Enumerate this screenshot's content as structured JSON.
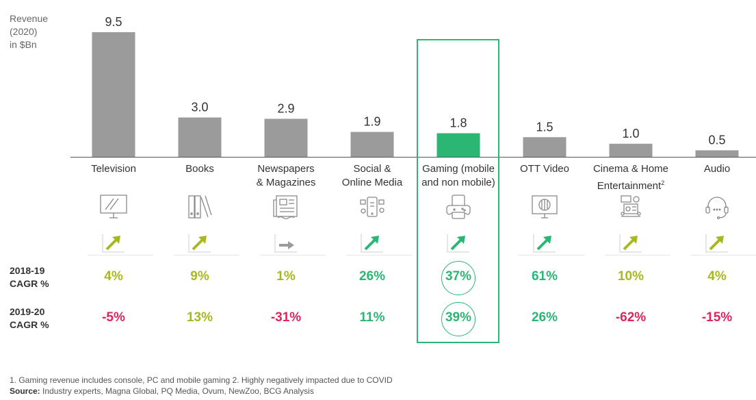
{
  "chart_data": {
    "type": "bar",
    "ylabel": "Revenue (2020) in $Bn",
    "categories": [
      "Television",
      "Books",
      "Newspapers & Magazines",
      "Social & Online Media",
      "Gaming (mobile and non mobile)",
      "OTT Video",
      "Cinema & Home Entertainment",
      "Audio"
    ],
    "values": [
      9.5,
      3.0,
      2.9,
      1.9,
      1.8,
      1.5,
      1.0,
      0.5
    ],
    "value_labels": [
      "9.5",
      "3.0",
      "2.9",
      "1.9",
      "1.8",
      "1.5",
      "1.0",
      "0.5"
    ],
    "highlighted_index": 4,
    "bar_color": "#9b9b9b",
    "highlight_color": "#2bb673",
    "series": [
      {
        "name": "2018-19 CAGR %",
        "values": [
          4,
          9,
          1,
          26,
          37,
          61,
          10,
          4
        ]
      },
      {
        "name": "2019-20 CAGR %",
        "values": [
          -5,
          13,
          -31,
          11,
          39,
          26,
          -62,
          -15
        ]
      }
    ]
  },
  "labels": {
    "ylabel_lines": [
      "Revenue",
      "(2020)",
      "in $Bn"
    ],
    "categories": [
      {
        "line1": "Television",
        "line2": "",
        "sup": ""
      },
      {
        "line1": "Books",
        "line2": "",
        "sup": ""
      },
      {
        "line1": "Newspapers",
        "line2": "& Magazines",
        "sup": ""
      },
      {
        "line1": "Social &",
        "line2": "Online Media",
        "sup": ""
      },
      {
        "line1": "Gaming (mobile",
        "line2": "and non mobile)",
        "sup": ""
      },
      {
        "line1": "OTT Video",
        "line2": "",
        "sup": ""
      },
      {
        "line1": "Cinema & Home",
        "line2": "Entertainment",
        "sup": "2"
      },
      {
        "line1": "Audio",
        "line2": "",
        "sup": ""
      }
    ],
    "row1_lines": [
      "2018-19",
      "CAGR %"
    ],
    "row2_lines": [
      "2019-20",
      "CAGR %"
    ],
    "row1": [
      {
        "text": "4%",
        "tone": "olive"
      },
      {
        "text": "9%",
        "tone": "olive"
      },
      {
        "text": "1%",
        "tone": "olive"
      },
      {
        "text": "26%",
        "tone": "green"
      },
      {
        "text": "37%",
        "tone": "green"
      },
      {
        "text": "61%",
        "tone": "green"
      },
      {
        "text": "10%",
        "tone": "olive"
      },
      {
        "text": "4%",
        "tone": "olive"
      }
    ],
    "row2": [
      {
        "text": "-5%",
        "tone": "red"
      },
      {
        "text": "13%",
        "tone": "olive"
      },
      {
        "text": "-31%",
        "tone": "red"
      },
      {
        "text": "11%",
        "tone": "green"
      },
      {
        "text": "39%",
        "tone": "green"
      },
      {
        "text": "26%",
        "tone": "green"
      },
      {
        "text": "-62%",
        "tone": "red"
      },
      {
        "text": "-15%",
        "tone": "red"
      }
    ],
    "trends": [
      "up-olive",
      "up-olive",
      "flat-grey",
      "up-green",
      "up-green",
      "up-green",
      "up-olive",
      "up-olive"
    ],
    "icons": [
      "tv-icon",
      "books-icon",
      "newspaper-icon",
      "social-media-icon",
      "gamepad-icon",
      "ott-video-icon",
      "cinema-icon",
      "headset-icon"
    ]
  },
  "colors": {
    "olive": "#a8b820",
    "green": "#2bb673",
    "red": "#e0245e",
    "grey": "#9b9b9b"
  },
  "footnote": "1. Gaming revenue includes console, PC and mobile gaming  2. Highly negatively impacted due to COVID",
  "source_label": "Source:",
  "source_text": " Industry experts, Magna Global, PQ Media, Ovum, NewZoo, BCG Analysis"
}
